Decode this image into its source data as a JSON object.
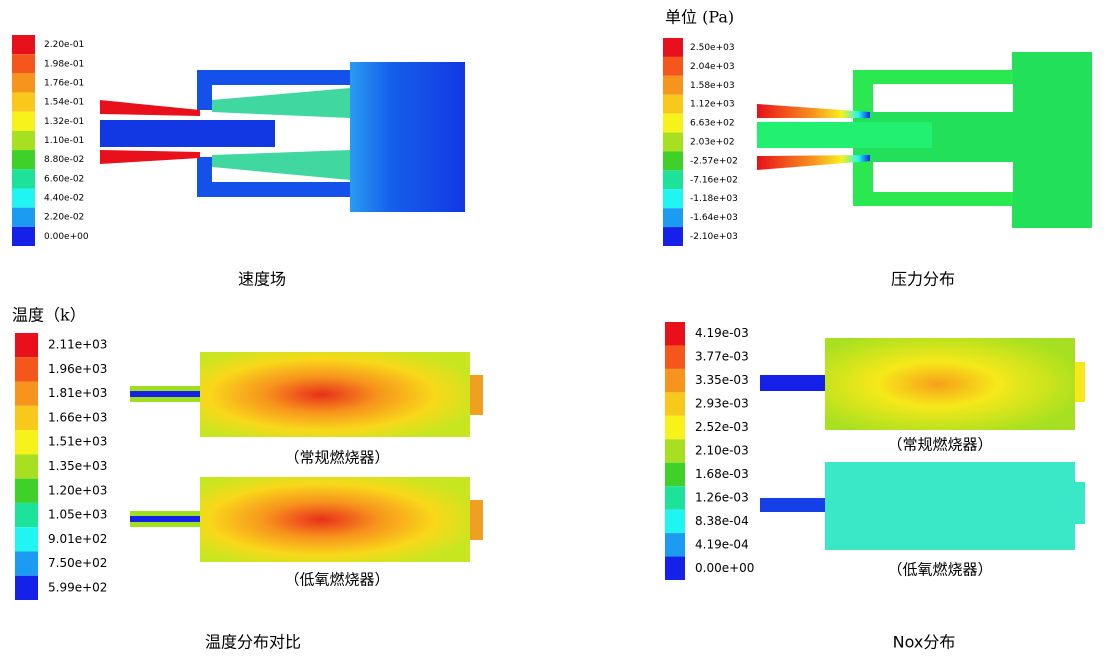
{
  "colormap": [
    "#e8101a",
    "#f4561c",
    "#f7941d",
    "#f8c81a",
    "#f6f21a",
    "#a6e020",
    "#3fd12a",
    "#1de39a",
    "#21f5f3",
    "#1b9cf2",
    "#1520e8"
  ],
  "panels": [
    {
      "caption": "速度场",
      "colorbar": {
        "labels": [
          "2.20e-01",
          "1.98e-01",
          "1.76e-01",
          "1.54e-01",
          "1.32e-01",
          "1.10e-01",
          "8.80e-02",
          "6.60e-02",
          "4.40e-02",
          "2.20e-02",
          "0.00e+00"
        ]
      }
    },
    {
      "unit": "单位 (Pa)",
      "caption": "压力分布",
      "colorbar": {
        "labels": [
          "2.50e+03",
          "2.04e+03",
          "1.58e+03",
          "1.12e+03",
          "6.63e+02",
          "2.03e+02",
          "-2.57e+02",
          "-7.16e+02",
          "-1.18e+03",
          "-1.64e+03",
          "-2.10e+03"
        ]
      }
    },
    {
      "unit": "温度（k）",
      "caption": "温度分布对比",
      "sub_captions": [
        "（常规燃烧器）",
        "（低氧燃烧器）"
      ],
      "colorbar": {
        "labels": [
          "2.11e+03",
          "1.96e+03",
          "1.81e+03",
          "1.66e+03",
          "1.51e+03",
          "1.35e+03",
          "1.20e+03",
          "1.05e+03",
          "9.01e+02",
          "7.50e+02",
          "5.99e+02"
        ]
      }
    },
    {
      "caption": "Nox分布",
      "sub_captions": [
        "（常规燃烧器）",
        "（低氧燃烧器）"
      ],
      "colorbar": {
        "labels": [
          "4.19e-03",
          "3.77e-03",
          "3.35e-03",
          "2.93e-03",
          "2.52e-03",
          "2.10e-03",
          "1.68e-03",
          "1.26e-03",
          "8.38e-04",
          "4.19e-04",
          "0.00e+00"
        ]
      }
    }
  ]
}
